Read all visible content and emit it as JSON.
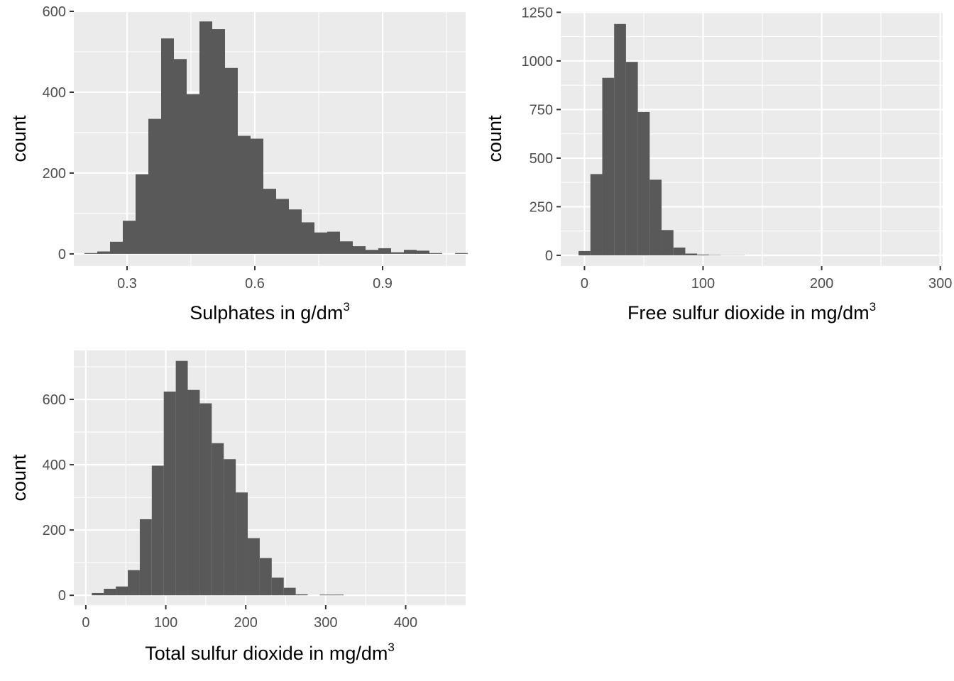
{
  "chart_data": [
    {
      "type": "bar",
      "subtype": "histogram",
      "xlabel": "Sulphates in g/dm",
      "xlabel_sup": "3",
      "ylabel": "count",
      "xlim": [
        0.175,
        1.095
      ],
      "ylim": [
        -30,
        600
      ],
      "xticks": [
        0.3,
        0.6,
        0.9
      ],
      "xtick_labels": [
        "0.3",
        "0.6",
        "0.9"
      ],
      "xminor": [
        0.15,
        0.45,
        0.75,
        1.05
      ],
      "yticks": [
        0,
        200,
        400,
        600
      ],
      "yminor": [
        100,
        300,
        500
      ],
      "grid": true,
      "bin_start": 0.2,
      "bin_width": 0.03,
      "values": [
        2,
        6,
        30,
        82,
        197,
        334,
        533,
        482,
        395,
        575,
        556,
        460,
        292,
        285,
        161,
        136,
        110,
        78,
        53,
        55,
        31,
        19,
        10,
        14,
        4,
        10,
        8,
        2,
        0,
        2
      ]
    },
    {
      "type": "bar",
      "subtype": "histogram",
      "xlabel": "Free sulfur dioxide in mg/dm",
      "xlabel_sup": "3",
      "ylabel": "count",
      "xlim": [
        -20,
        302
      ],
      "ylim": [
        -55,
        1255
      ],
      "xticks": [
        0,
        100,
        200,
        300
      ],
      "xtick_labels": [
        "0",
        "100",
        "200",
        "300"
      ],
      "xminor": [
        50,
        150,
        250
      ],
      "yticks": [
        0,
        250,
        500,
        750,
        1000,
        1250
      ],
      "yminor": [
        125,
        375,
        625,
        875,
        1125
      ],
      "grid": true,
      "bin_start": -5,
      "bin_width": 10,
      "values": [
        22,
        418,
        913,
        1190,
        995,
        737,
        389,
        130,
        40,
        9,
        4,
        2,
        1,
        1
      ]
    },
    {
      "type": "bar",
      "subtype": "histogram",
      "xlabel": "Total sulfur dioxide in mg/dm",
      "xlabel_sup": "3",
      "ylabel": "count",
      "xlim": [
        -15,
        475
      ],
      "ylim": [
        -30,
        750
      ],
      "xticks": [
        0,
        100,
        200,
        300,
        400
      ],
      "xtick_labels": [
        "0",
        "100",
        "200",
        "300",
        "400"
      ],
      "xminor": [
        50,
        150,
        250,
        350,
        450
      ],
      "yticks": [
        0,
        200,
        400,
        600
      ],
      "yminor": [
        100,
        300,
        500,
        700
      ],
      "grid": true,
      "bin_start": 7.5,
      "bin_width": 15,
      "values": [
        7,
        20,
        27,
        77,
        233,
        397,
        624,
        718,
        629,
        588,
        466,
        417,
        315,
        175,
        114,
        54,
        23,
        3,
        0,
        2,
        2
      ]
    }
  ]
}
